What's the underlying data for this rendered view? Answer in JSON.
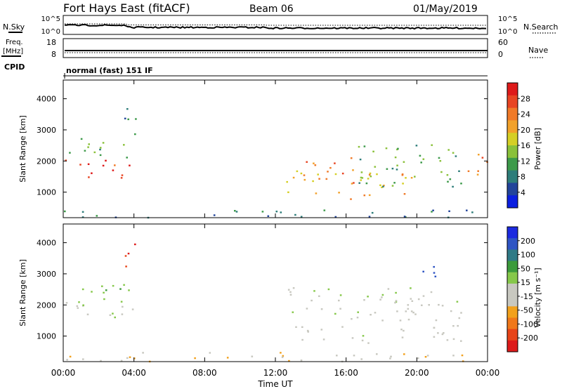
{
  "header": {
    "station": "Fort Hays East (fitACF)",
    "beam": "Beam 06",
    "date": "01/May/2019"
  },
  "noise_panel": {
    "left_label": "N.Sky",
    "left_ticks": [
      "10^5",
      "10^0"
    ],
    "right_ticks": [
      "10^5",
      "10^0"
    ],
    "right_label": "N.Search"
  },
  "freq_panel": {
    "left_label_top": "Freq.",
    "left_label_bottom": "[MHz]",
    "left_ticks": [
      "18",
      "8"
    ],
    "right_ticks": [
      "60",
      "0"
    ],
    "right_label": "Nave",
    "cpid_label": "CPID",
    "cpid_text": "normal (fast) 151 IF"
  },
  "chart_data": [
    {
      "type": "heatmap",
      "name": "Power",
      "ylabel": "Slant Range [km]",
      "y_ticks": [
        "4000",
        "3000",
        "2000",
        "1000"
      ],
      "y_tick_values": [
        4000,
        3000,
        2000,
        1000
      ],
      "ylim": [
        180,
        4600
      ],
      "colorbar": {
        "label": "Power [dB]",
        "ticks": [
          "28",
          "24",
          "20",
          "16",
          "12",
          "8",
          "4"
        ],
        "tick_values": [
          28,
          24,
          20,
          16,
          12,
          8,
          4
        ],
        "range": [
          0,
          32
        ],
        "colors": [
          "#0b1fe0",
          "#22449a",
          "#2e7d7a",
          "#3d9a4a",
          "#8ac13a",
          "#d5cf25",
          "#f2a12a",
          "#f07a28",
          "#e84523",
          "#de1a1a"
        ]
      },
      "regions": [
        {
          "t": [
            0.1,
            4.0
          ],
          "r": [
            1400,
            2100
          ],
          "value": 28
        },
        {
          "t": [
            0.1,
            3.9
          ],
          "r": [
            2100,
            2800
          ],
          "value": 12
        },
        {
          "t": [
            3.4,
            4.1
          ],
          "r": [
            2700,
            4400
          ],
          "value": 8
        },
        {
          "t": [
            12.6,
            20.0
          ],
          "r": [
            800,
            1700
          ],
          "value": 20
        },
        {
          "t": [
            13.5,
            16.5
          ],
          "r": [
            1300,
            2200
          ],
          "value": 24
        },
        {
          "t": [
            16.0,
            22.5
          ],
          "r": [
            1200,
            2600
          ],
          "value": 12
        },
        {
          "t": [
            22.5,
            24.0
          ],
          "r": [
            1500,
            2400
          ],
          "value": 24
        },
        {
          "t": [
            0.0,
            24.0
          ],
          "r": [
            200,
            450
          ],
          "value": 8
        }
      ]
    },
    {
      "type": "heatmap",
      "name": "Velocity",
      "ylabel": "Slant Range [km]",
      "y_ticks": [
        "4000",
        "3000",
        "2000",
        "1000"
      ],
      "y_tick_values": [
        4000,
        3000,
        2000,
        1000
      ],
      "ylim": [
        180,
        4600
      ],
      "colorbar": {
        "label": "Velocity [m s⁻¹]",
        "ticks": [
          "200",
          "100",
          "50",
          "15",
          "-15",
          "-50",
          "-100",
          "-200"
        ],
        "tick_values": [
          200,
          100,
          50,
          15,
          -15,
          -50,
          -100,
          -200
        ],
        "range": [
          -250,
          250
        ],
        "colors": [
          "#1c2ae0",
          "#2f55c4",
          "#2f7a86",
          "#3c9b3c",
          "#86c84a",
          "#c8c8c0",
          "#c8c8c0",
          "#f2a11c",
          "#f0781a",
          "#e84418",
          "#dd1a1a"
        ]
      },
      "regions": [
        {
          "t": [
            0.1,
            4.0
          ],
          "r": [
            1400,
            2100
          ],
          "value": 0
        },
        {
          "t": [
            0.1,
            3.9
          ],
          "r": [
            2100,
            2800
          ],
          "value": 60
        },
        {
          "t": [
            3.4,
            4.1
          ],
          "r": [
            3200,
            4400
          ],
          "value": -200
        },
        {
          "t": [
            12.6,
            22.5
          ],
          "r": [
            800,
            2600
          ],
          "value": 0
        },
        {
          "t": [
            20.3,
            22.0
          ],
          "r": [
            2900,
            3400
          ],
          "value": 200
        },
        {
          "t": [
            0.0,
            24.0
          ],
          "r": [
            200,
            500
          ],
          "value": -60
        }
      ]
    }
  ],
  "x_axis": {
    "label": "Time UT",
    "ticks": [
      "00:00",
      "04:00",
      "08:00",
      "12:00",
      "16:00",
      "20:00",
      "00:00"
    ],
    "tick_values": [
      0,
      4,
      8,
      12,
      16,
      20,
      24
    ],
    "range": [
      0,
      24
    ]
  }
}
